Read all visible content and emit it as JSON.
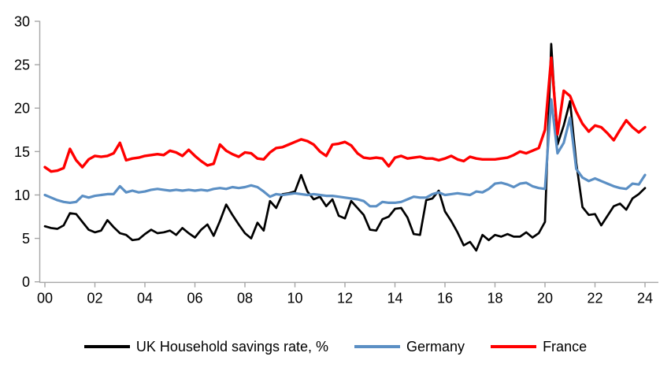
{
  "chart_data": {
    "type": "line",
    "title": "",
    "xlabel": "",
    "ylabel": "",
    "frequency": "quarterly",
    "x_start_year": 2000,
    "x_end_year": 2024,
    "ylim": [
      0,
      30
    ],
    "y_ticks": [
      0,
      5,
      10,
      15,
      20,
      25,
      30
    ],
    "x_tick_labels": [
      "00",
      "02",
      "04",
      "06",
      "08",
      "10",
      "12",
      "14",
      "16",
      "18",
      "20",
      "22",
      "24"
    ],
    "grid": "off",
    "legend_position": "bottom",
    "series": [
      {
        "name": "UK Household savings rate, %",
        "color": "#000000",
        "stroke_width": 2.7,
        "values": [
          6.4,
          6.2,
          6.1,
          6.5,
          7.9,
          7.8,
          6.9,
          6.0,
          5.7,
          5.9,
          7.1,
          6.3,
          5.6,
          5.4,
          4.8,
          4.9,
          5.5,
          6.0,
          5.6,
          5.7,
          5.9,
          5.4,
          6.2,
          5.6,
          5.1,
          6.0,
          6.6,
          5.3,
          7.0,
          8.9,
          7.7,
          6.6,
          5.6,
          5.0,
          6.8,
          5.9,
          9.3,
          8.5,
          10.1,
          10.2,
          10.4,
          12.3,
          10.4,
          9.5,
          9.8,
          8.7,
          9.5,
          7.6,
          7.3,
          9.3,
          8.5,
          7.7,
          6.0,
          5.9,
          7.2,
          7.5,
          8.4,
          8.5,
          7.4,
          5.5,
          5.4,
          9.4,
          9.6,
          10.5,
          8.1,
          7.0,
          5.7,
          4.2,
          4.6,
          3.6,
          5.4,
          4.8,
          5.4,
          5.2,
          5.5,
          5.2,
          5.2,
          5.7,
          5.1,
          5.6,
          6.9,
          27.4,
          15.8,
          18.0,
          20.8,
          13.7,
          8.6,
          7.7,
          7.8,
          6.5,
          7.6,
          8.7,
          9.0,
          8.3,
          9.6,
          10.1,
          10.8
        ]
      },
      {
        "name": "Germany",
        "color": "#5B8FC4",
        "stroke_width": 3.2,
        "values": [
          10.0,
          9.7,
          9.4,
          9.2,
          9.1,
          9.2,
          9.9,
          9.7,
          9.9,
          10.0,
          10.1,
          10.1,
          11.0,
          10.3,
          10.5,
          10.3,
          10.4,
          10.6,
          10.7,
          10.6,
          10.5,
          10.6,
          10.5,
          10.6,
          10.5,
          10.6,
          10.5,
          10.7,
          10.8,
          10.7,
          10.9,
          10.8,
          10.9,
          11.1,
          10.9,
          10.4,
          9.8,
          10.1,
          10.0,
          10.1,
          10.2,
          10.1,
          10.0,
          10.1,
          10.0,
          9.9,
          9.9,
          9.8,
          9.7,
          9.6,
          9.5,
          9.3,
          8.7,
          8.7,
          9.2,
          9.1,
          9.1,
          9.2,
          9.5,
          9.8,
          9.7,
          9.7,
          10.1,
          10.3,
          10.0,
          10.1,
          10.2,
          10.1,
          10.0,
          10.4,
          10.3,
          10.7,
          11.3,
          11.4,
          11.2,
          10.9,
          11.3,
          11.4,
          11.0,
          10.8,
          10.7,
          21.0,
          14.8,
          16.0,
          18.9,
          13.0,
          12.0,
          11.6,
          11.9,
          11.6,
          11.3,
          11.0,
          10.8,
          10.7,
          11.3,
          11.2,
          12.3
        ]
      },
      {
        "name": "France",
        "color": "#FF0000",
        "stroke_width": 3.4,
        "values": [
          13.2,
          12.7,
          12.8,
          13.1,
          15.3,
          14.0,
          13.2,
          14.1,
          14.5,
          14.4,
          14.5,
          14.8,
          16.0,
          14.0,
          14.2,
          14.3,
          14.5,
          14.6,
          14.7,
          14.6,
          15.1,
          14.9,
          14.5,
          15.2,
          14.5,
          13.9,
          13.4,
          13.6,
          15.8,
          15.1,
          14.7,
          14.4,
          14.9,
          14.8,
          14.2,
          14.1,
          14.9,
          15.4,
          15.5,
          15.8,
          16.1,
          16.4,
          16.2,
          15.8,
          15.0,
          14.5,
          15.8,
          15.9,
          16.1,
          15.7,
          14.8,
          14.3,
          14.2,
          14.3,
          14.2,
          13.3,
          14.3,
          14.5,
          14.2,
          14.3,
          14.4,
          14.2,
          14.2,
          14.0,
          14.2,
          14.5,
          14.1,
          13.9,
          14.4,
          14.2,
          14.1,
          14.1,
          14.1,
          14.2,
          14.3,
          14.6,
          15.0,
          14.8,
          15.1,
          15.4,
          17.5,
          25.8,
          17.0,
          22.0,
          21.4,
          19.6,
          18.2,
          17.3,
          18.0,
          17.8,
          17.1,
          16.3,
          17.5,
          18.6,
          17.8,
          17.2,
          17.8
        ]
      }
    ]
  },
  "style": {
    "axis_color": "#A6A6A6",
    "tick_label_color": "#000000",
    "background": "#FFFFFF",
    "tick_font_size": 18
  }
}
